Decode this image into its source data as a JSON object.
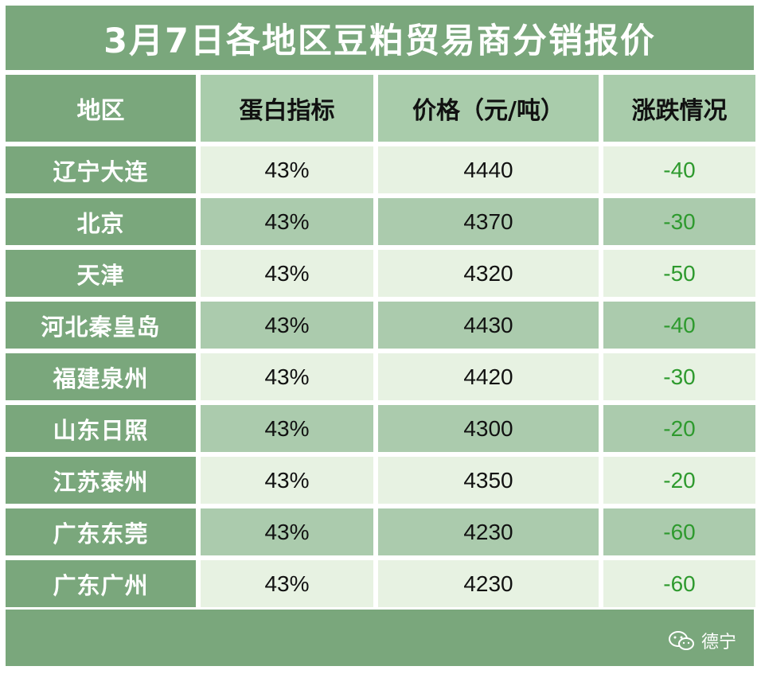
{
  "title": "3月7日各地区豆粕贸易商分销报价",
  "columns": [
    "地区",
    "蛋白指标",
    "价格（元/吨）",
    "涨跌情况"
  ],
  "rows": [
    {
      "region": "辽宁大连",
      "protein": "43%",
      "price": "4440",
      "change": "-40"
    },
    {
      "region": "北京",
      "protein": "43%",
      "price": "4370",
      "change": "-30"
    },
    {
      "region": "天津",
      "protein": "43%",
      "price": "4320",
      "change": "-50"
    },
    {
      "region": "河北秦皇岛",
      "protein": "43%",
      "price": "4430",
      "change": "-40"
    },
    {
      "region": "福建泉州",
      "protein": "43%",
      "price": "4420",
      "change": "-30"
    },
    {
      "region": "山东日照",
      "protein": "43%",
      "price": "4300",
      "change": "-20"
    },
    {
      "region": "江苏泰州",
      "protein": "43%",
      "price": "4350",
      "change": "-20"
    },
    {
      "region": "广东东莞",
      "protein": "43%",
      "price": "4230",
      "change": "-60"
    },
    {
      "region": "广东广州",
      "protein": "43%",
      "price": "4230",
      "change": "-60"
    }
  ],
  "watermark": {
    "icon": "wechat-icon",
    "text": "德宁"
  },
  "colors": {
    "dark_green": "#7aa77c",
    "mid_green": "#abcbad",
    "light_green": "#e7f2e2",
    "change_text": "#2e9a2e"
  }
}
